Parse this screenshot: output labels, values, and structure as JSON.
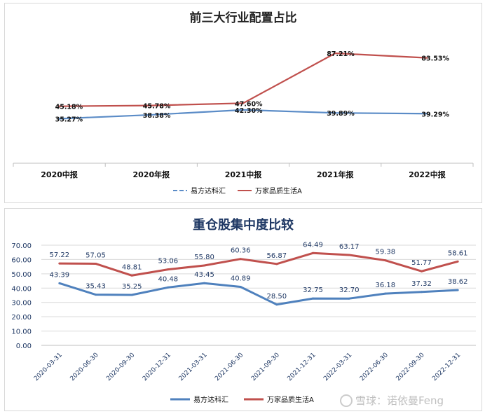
{
  "chart_data": [
    {
      "type": "line",
      "title": "前三大行业配置占比",
      "categories": [
        "2020中报",
        "2020年报",
        "2021中报",
        "2021年报",
        "2022中报"
      ],
      "series": [
        {
          "name": "易方达科汇",
          "values": [
            35.27,
            38.38,
            42.3,
            39.89,
            39.29
          ],
          "labels": [
            "35.27%",
            "38.38%",
            "42.30%",
            "39.89%",
            "39.29%"
          ],
          "color": "#5b8cc7",
          "dashed_legend": true
        },
        {
          "name": "万家品质生活A",
          "values": [
            45.18,
            45.78,
            47.6,
            87.21,
            83.53
          ],
          "labels": [
            "45.18%",
            "45.78%",
            "47.60%",
            "87.21%",
            "83.53%"
          ],
          "color": "#c0504d"
        }
      ],
      "ylim": [
        0,
        100
      ],
      "grid": false,
      "legend": "bottom"
    },
    {
      "type": "line",
      "title": "重仓股集中度比较",
      "categories": [
        "2020-03-31",
        "2020-06-30",
        "2020-09-30",
        "2020-12-31",
        "2021-03-31",
        "2021-06-30",
        "2021-09-30",
        "2021-12-31",
        "2022-03-31",
        "2022-06-30",
        "2022-09-30",
        "2022-12-31"
      ],
      "series": [
        {
          "name": "易方达科汇",
          "values": [
            43.39,
            35.43,
            35.25,
            40.48,
            43.45,
            40.89,
            28.5,
            32.75,
            32.7,
            36.18,
            37.32,
            38.62
          ],
          "labels": [
            "43.39",
            "35.43",
            "35.25",
            "40.48",
            "43.45",
            "40.89",
            "28.50",
            "32.75",
            "32.70",
            "36.18",
            "37.32",
            "38.62"
          ],
          "color": "#4f81bd"
        },
        {
          "name": "万家品质生活A",
          "values": [
            57.22,
            57.05,
            48.81,
            53.06,
            55.8,
            60.36,
            56.87,
            64.49,
            63.17,
            59.38,
            51.77,
            58.61
          ],
          "labels": [
            "57.22",
            "57.05",
            "48.81",
            "53.06",
            "55.80",
            "60.36",
            "56.87",
            "64.49",
            "63.17",
            "59.38",
            "51.77",
            "58.61"
          ],
          "color": "#c0504d"
        }
      ],
      "yticks": [
        "0.00",
        "10.00",
        "20.00",
        "30.00",
        "40.00",
        "50.00",
        "60.00",
        "70.00"
      ],
      "ylim": [
        0,
        70
      ],
      "grid": true,
      "legend": "bottom"
    }
  ],
  "watermark": "雪球：诺依曼Feng"
}
